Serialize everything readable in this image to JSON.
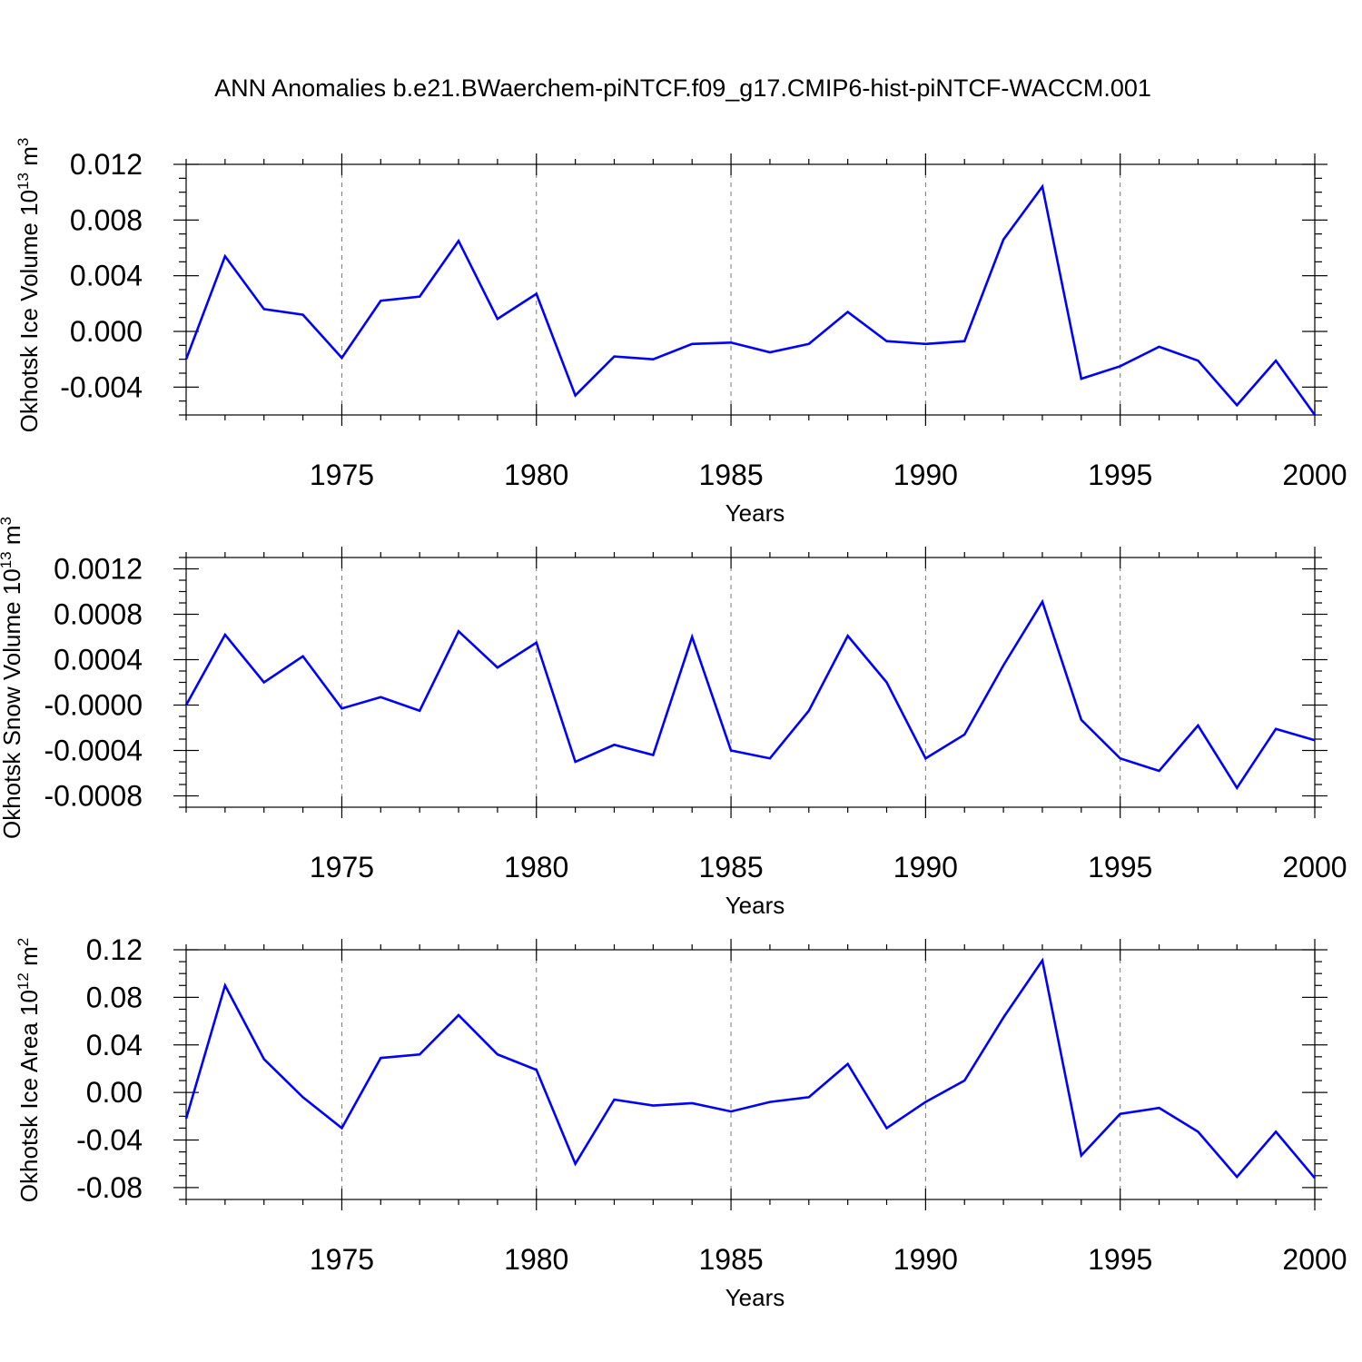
{
  "title": "ANN Anomalies b.e21.BWaerchem-piNTCF.f09_g17.CMIP6-hist-piNTCF-WACCM.001",
  "line_color": "#0000ff",
  "chart_data": [
    {
      "type": "line",
      "ylabel": "Okhotsk Ice Volume 10",
      "ylabel_sup": "13",
      "ylabel_unit": " m",
      "ylabel_unit_sup": "3",
      "xlabel": "Years",
      "xlim": [
        1971,
        2000
      ],
      "ylim": [
        -0.006,
        0.012
      ],
      "x_ticks": [
        "1975",
        "1980",
        "1985",
        "1990",
        "1995",
        "2000"
      ],
      "y_ticks": [
        "0.012",
        "0.008",
        "0.004",
        "0.000",
        "-0.004"
      ],
      "y_tick_values": [
        0.012,
        0.008,
        0.004,
        0.0,
        -0.004
      ],
      "grid": "dashed vertical at x ticks",
      "x": [
        1971,
        1972,
        1973,
        1974,
        1975,
        1976,
        1977,
        1978,
        1979,
        1980,
        1981,
        1982,
        1983,
        1984,
        1985,
        1986,
        1987,
        1988,
        1989,
        1990,
        1991,
        1992,
        1993,
        1994,
        1995,
        1996,
        1997,
        1998,
        1999,
        2000
      ],
      "series": [
        {
          "values": [
            -0.002,
            0.0054,
            0.0016,
            0.0012,
            -0.0019,
            0.0022,
            0.0025,
            0.0065,
            0.0009,
            0.0027,
            -0.0046,
            -0.0018,
            -0.002,
            -0.0009,
            -0.0008,
            -0.0015,
            -0.0009,
            0.0014,
            -0.0007,
            -0.0009,
            -0.0007,
            0.0066,
            0.0104,
            -0.0034,
            -0.0025,
            -0.0011,
            -0.0021,
            -0.0053,
            -0.0021,
            -0.006
          ]
        }
      ]
    },
    {
      "type": "line",
      "ylabel": "Okhotsk Snow Volume 10",
      "ylabel_sup": "13",
      "ylabel_unit": " m",
      "ylabel_unit_sup": "3",
      "xlabel": "Years",
      "xlim": [
        1971,
        2000
      ],
      "ylim": [
        -0.0009,
        0.0013
      ],
      "x_ticks": [
        "1975",
        "1980",
        "1985",
        "1990",
        "1995",
        "2000"
      ],
      "y_ticks": [
        "0.0012",
        "0.0008",
        "0.0004",
        "-0.0000",
        "-0.0004",
        "-0.0008"
      ],
      "y_tick_values": [
        0.0012,
        0.0008,
        0.0004,
        0.0,
        -0.0004,
        -0.0008
      ],
      "grid": "dashed vertical at x ticks",
      "x": [
        1971,
        1972,
        1973,
        1974,
        1975,
        1976,
        1977,
        1978,
        1979,
        1980,
        1981,
        1982,
        1983,
        1984,
        1985,
        1986,
        1987,
        1988,
        1989,
        1990,
        1991,
        1992,
        1993,
        1994,
        1995,
        1996,
        1997,
        1998,
        1999,
        2000
      ],
      "series": [
        {
          "values": [
            0.0,
            0.00062,
            0.0002,
            0.00043,
            -3e-05,
            7e-05,
            -5e-05,
            0.00065,
            0.00033,
            0.00055,
            -0.0005,
            -0.00035,
            -0.00044,
            0.0006,
            -0.0004,
            -0.00047,
            -5e-05,
            0.00061,
            0.0002,
            -0.00047,
            -0.00026,
            0.00035,
            0.00091,
            -0.00013,
            -0.00047,
            -0.00058,
            -0.00018,
            -0.00073,
            -0.00021,
            -0.00031
          ]
        }
      ]
    },
    {
      "type": "line",
      "ylabel": "Okhotsk Ice Area 10",
      "ylabel_sup": "12",
      "ylabel_unit": " m",
      "ylabel_unit_sup": "2",
      "xlabel": "Years",
      "xlim": [
        1971,
        2000
      ],
      "ylim": [
        -0.09,
        0.12
      ],
      "x_ticks": [
        "1975",
        "1980",
        "1985",
        "1990",
        "1995",
        "2000"
      ],
      "y_ticks": [
        "0.12",
        "0.08",
        "0.04",
        "0.00",
        "-0.04",
        "-0.08"
      ],
      "y_tick_values": [
        0.12,
        0.08,
        0.04,
        0.0,
        -0.04,
        -0.08
      ],
      "grid": "dashed vertical at x ticks",
      "x": [
        1971,
        1972,
        1973,
        1974,
        1975,
        1976,
        1977,
        1978,
        1979,
        1980,
        1981,
        1982,
        1983,
        1984,
        1985,
        1986,
        1987,
        1988,
        1989,
        1990,
        1991,
        1992,
        1993,
        1994,
        1995,
        1996,
        1997,
        1998,
        1999,
        2000
      ],
      "series": [
        {
          "values": [
            -0.022,
            0.09,
            0.028,
            -0.004,
            -0.03,
            0.029,
            0.032,
            0.065,
            0.032,
            0.019,
            -0.06,
            -0.006,
            -0.011,
            -0.009,
            -0.016,
            -0.008,
            -0.004,
            0.024,
            -0.03,
            -0.008,
            0.01,
            0.063,
            0.111,
            -0.053,
            -0.018,
            -0.013,
            -0.033,
            -0.071,
            -0.033,
            -0.072
          ]
        }
      ]
    }
  ]
}
